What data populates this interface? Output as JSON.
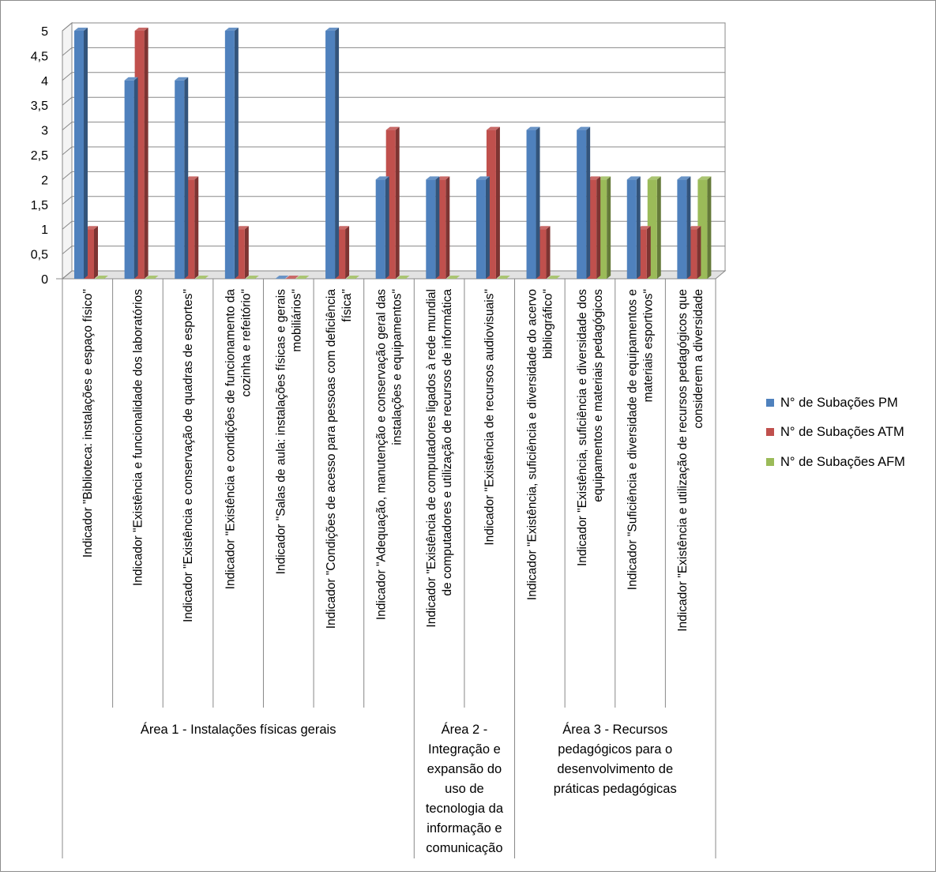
{
  "chart_data": {
    "type": "bar",
    "title": "",
    "xlabel": "",
    "ylabel": "",
    "ylim": [
      0,
      5
    ],
    "yticks": [
      "0",
      "0,5",
      "1",
      "1,5",
      "2",
      "2,5",
      "3",
      "3,5",
      "4",
      "4,5",
      "5"
    ],
    "grid": true,
    "legend_position": "right",
    "categories": [
      [
        "Indicador \"Biblioteca: instalações e espaço físico\""
      ],
      [
        "Indicador \"Existência e funcionalidade dos laboratórios"
      ],
      [
        "Indicador \"Existência e conservação de quadras de esportes\""
      ],
      [
        "Indicador \"Existência e condições de funcionamento da",
        "cozinha e refeitório\""
      ],
      [
        "Indicador \"Salas de aula: instalações físicas e gerais",
        "mobiliários\""
      ],
      [
        "Indicador \"Condições de acesso para pessoas com deficiência",
        "física\""
      ],
      [
        "Indicador \"Adequação, manutenção e conservação geral das",
        "instalações e equipamentos\""
      ],
      [
        "Indicador \"Existência de computadores ligados à rede mundial",
        "de computadores e utilização de recursos de informática"
      ],
      [
        "Indicador \"Existência de recursos audiovisuais\""
      ],
      [
        "Indicador \"Existência, suficiência e diversidade  do acervo",
        "bibliográfico\""
      ],
      [
        "Indicador \"Existência, suficiência e diversidade dos",
        "equipamentos e materiais pedagógicos"
      ],
      [
        "Indicador \"Suficiência e diversidade de equipamentos e",
        "materiais esportivos\""
      ],
      [
        "Indicador \"Existência e utilização de recursos pedagógicos que",
        "considerem a diversidade"
      ]
    ],
    "groups": [
      {
        "label": [
          "Área 1 - Instalações físicas gerais"
        ],
        "from": 0,
        "to": 6
      },
      {
        "label": [
          "Área 2 -",
          "Integração e",
          "expansão do",
          "uso de",
          "tecnologia da",
          "informação e",
          "comunicação"
        ],
        "from": 7,
        "to": 8
      },
      {
        "label": [
          "Área 3 - Recursos",
          "pedagógicos para o",
          "desenvolvimento de",
          "práticas pedagógicas"
        ],
        "from": 9,
        "to": 12
      }
    ],
    "series": [
      {
        "name": "N° de Subações PM",
        "color": "#4F81BD",
        "values": [
          5,
          4,
          4,
          5,
          0,
          5,
          2,
          2,
          2,
          3,
          3,
          2,
          2
        ]
      },
      {
        "name": "N° de Subações ATM",
        "color": "#C0504D",
        "values": [
          1,
          5,
          2,
          1,
          0,
          1,
          3,
          2,
          3,
          1,
          2,
          1,
          1
        ]
      },
      {
        "name": "N° de Subações AFM",
        "color": "#9BBB59",
        "values": [
          0,
          0,
          0,
          0,
          0,
          0,
          0,
          0,
          0,
          0,
          2,
          2,
          2
        ]
      }
    ]
  }
}
